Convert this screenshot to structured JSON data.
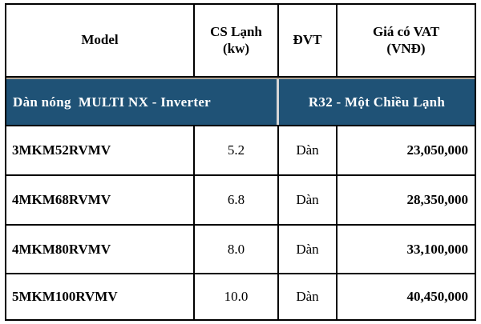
{
  "table": {
    "columns": [
      {
        "line1": "Model",
        "line2": ""
      },
      {
        "line1": "CS Lạnh",
        "line2": "(kw)"
      },
      {
        "line1": "ĐVT",
        "line2": ""
      },
      {
        "line1": "Giá có VAT",
        "line2": "(VNĐ)"
      }
    ],
    "section": {
      "left": "Dàn nóng  MULTI NX - Inverter",
      "right": "R32 - Một Chiều Lạnh"
    },
    "rows": [
      {
        "model": "3MKM52RVMV",
        "cs": "5.2",
        "dvt": "Dàn",
        "price": "23,050,000"
      },
      {
        "model": "4MKM68RVMV",
        "cs": "6.8",
        "dvt": "Dàn",
        "price": "28,350,000"
      },
      {
        "model": "4MKM80RVMV",
        "cs": "8.0",
        "dvt": "Dàn",
        "price": "33,100,000"
      },
      {
        "model": "5MKM100RVMV",
        "cs": "10.0",
        "dvt": "Dàn",
        "price": "40,450,000"
      }
    ],
    "colors": {
      "section_bg": "#1F5276",
      "section_text": "#FFFFFF",
      "border": "#000000",
      "section_top_line": "#B0A495"
    }
  }
}
